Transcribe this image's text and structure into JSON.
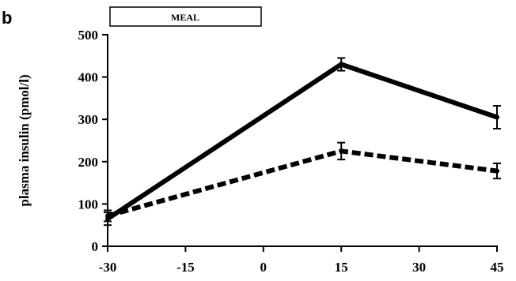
{
  "panel_label": "b",
  "chart_data": {
    "type": "line",
    "ylabel": "plasma insulin (pmol/l)",
    "xlabel": "",
    "x": [
      -30,
      15,
      45
    ],
    "xlim": [
      -30,
      45
    ],
    "ylim": [
      0,
      500
    ],
    "x_ticks": [
      -30,
      -15,
      0,
      15,
      30,
      45
    ],
    "y_ticks": [
      0,
      100,
      200,
      300,
      400,
      500
    ],
    "grid": false,
    "annotation": {
      "label": "MEAL",
      "x_start": -30,
      "x_end": 0
    },
    "series": [
      {
        "style": "solid",
        "color": "#000000",
        "values": [
          65,
          430,
          305
        ],
        "errors": [
          15,
          15,
          27
        ]
      },
      {
        "style": "dashed",
        "color": "#000000",
        "values": [
          72,
          225,
          178
        ],
        "errors": [
          13,
          20,
          18
        ]
      }
    ]
  }
}
